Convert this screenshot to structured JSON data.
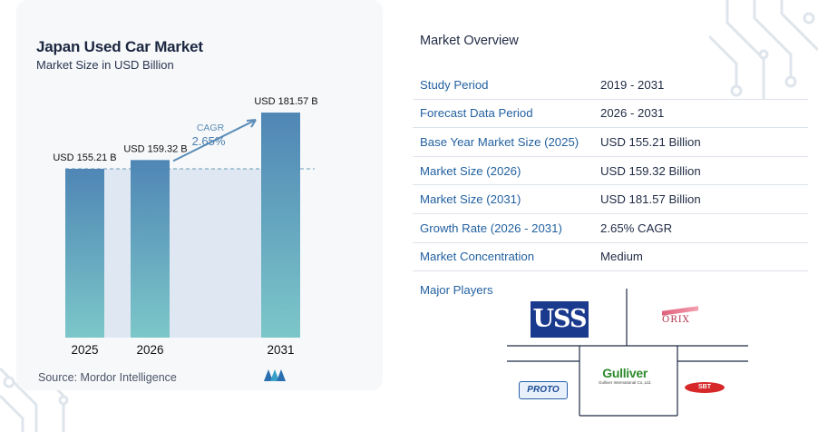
{
  "chart_data": {
    "type": "bar",
    "title": "Japan Used Car Market",
    "subtitle": "Market Size in USD Billion",
    "categories": [
      "2025",
      "2026",
      "2031"
    ],
    "values": [
      155.21,
      159.32,
      181.57
    ],
    "value_labels": [
      "USD 155.21 B",
      "USD 159.32 B",
      "USD 181.57 B"
    ],
    "cagr_label": "CAGR",
    "cagr_value": "2.65%",
    "bar_color_top": "#4f86b5",
    "bar_color_bottom": "#7cc7c9",
    "baseline_dashed": true,
    "source": "Source:  Mordor Intelligence"
  },
  "overview": {
    "title": "Market Overview",
    "rows": [
      {
        "label": "Study Period",
        "value": "2019 - 2031"
      },
      {
        "label": "Forecast Data Period",
        "value": "2026 - 2031"
      },
      {
        "label": "Base Year Market Size (2025)",
        "value": "USD 155.21 Billion"
      },
      {
        "label": "Market Size (2026)",
        "value": "USD 159.32 Billion"
      },
      {
        "label": "Market Size (2031)",
        "value": "USD 181.57 Billion"
      },
      {
        "label": "Growth Rate (2026 - 2031)",
        "value": "2.65% CAGR"
      },
      {
        "label": "Market Concentration",
        "value": "Medium"
      }
    ],
    "players_title": "Major Players",
    "players": {
      "uss": "USS",
      "orix": "ORIX",
      "gulliver": "Gulliver",
      "gulliver_sub": "Gulliver International Co.,Ltd.",
      "proto": "PROTO",
      "sbt": "SBT"
    }
  }
}
